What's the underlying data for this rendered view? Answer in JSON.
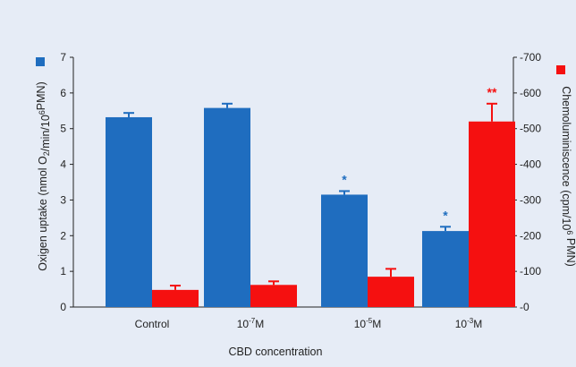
{
  "chart_data": {
    "type": "bar",
    "categories": [
      {
        "base": "Control",
        "exp": "",
        "unit": ""
      },
      {
        "base": "10",
        "exp": "-7",
        "unit": "M"
      },
      {
        "base": "10",
        "exp": "-5",
        "unit": "M"
      },
      {
        "base": "10",
        "exp": "-3",
        "unit": "M"
      }
    ],
    "xlabel": "CBD concentration",
    "ylabel_left": "Oxigen uptake (nmol O₂/min/10⁶PMN)",
    "ylabel_right": "Chemoluminiscence (cpm/10⁶ PMN)",
    "ylim_left": [
      0,
      7
    ],
    "ylim_right": [
      0,
      700
    ],
    "yticks_left": [
      0,
      1,
      2,
      3,
      4,
      5,
      6,
      7
    ],
    "yticks_right": [
      0,
      100,
      200,
      300,
      400,
      500,
      600,
      700
    ],
    "series": [
      {
        "axis": "left",
        "color": "#1f6dbf",
        "values": [
          5.32,
          5.58,
          3.15,
          2.13
        ],
        "errors": [
          0.12,
          0.12,
          0.1,
          0.12
        ],
        "significance": [
          "",
          "",
          "*",
          "*"
        ]
      },
      {
        "axis": "right",
        "color": "#f51010",
        "values": [
          48,
          62,
          85,
          520
        ],
        "errors": [
          12,
          10,
          22,
          50
        ],
        "significance": [
          "",
          "",
          "",
          "**"
        ]
      }
    ],
    "legend": "colored squares beside each y-axis",
    "grid": false
  }
}
